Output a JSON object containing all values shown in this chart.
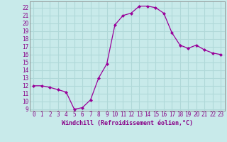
{
  "x": [
    0,
    1,
    2,
    3,
    4,
    5,
    6,
    7,
    8,
    9,
    10,
    11,
    12,
    13,
    14,
    15,
    16,
    17,
    18,
    19,
    20,
    21,
    22,
    23
  ],
  "y": [
    12.0,
    12.0,
    11.8,
    11.5,
    11.2,
    9.0,
    9.2,
    10.2,
    13.0,
    14.8,
    19.8,
    21.0,
    21.3,
    22.2,
    22.2,
    22.0,
    21.3,
    18.8,
    17.2,
    16.8,
    17.2,
    16.6,
    16.2,
    16.0
  ],
  "line_color": "#990099",
  "marker": "D",
  "markersize": 2.0,
  "linewidth": 0.9,
  "bg_color": "#c8eaea",
  "grid_color": "#b0d8d8",
  "xlabel": "Windchill (Refroidissement éolien,°C)",
  "xlabel_fontsize": 6.0,
  "xlabel_color": "#880088",
  "ylabel_ticks": [
    9,
    10,
    11,
    12,
    13,
    14,
    15,
    16,
    17,
    18,
    19,
    20,
    21,
    22
  ],
  "ylim": [
    8.8,
    22.8
  ],
  "xlim": [
    -0.5,
    23.5
  ],
  "tick_fontsize": 5.5,
  "tick_color": "#880088",
  "spine_color": "#888888"
}
